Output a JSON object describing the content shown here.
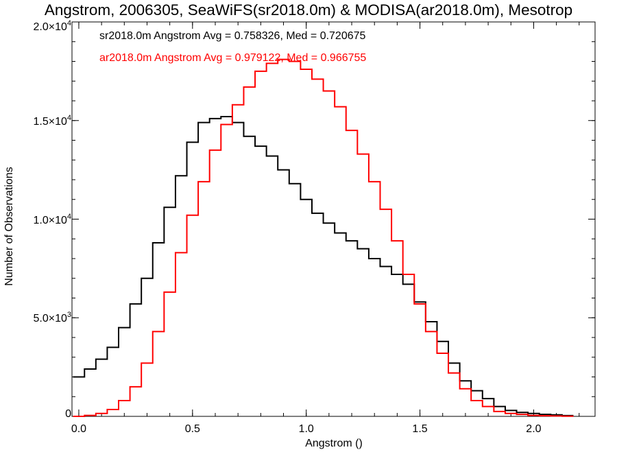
{
  "chart_data": {
    "type": "line",
    "title": "Angstrom, 2006305, SeaWiFS(sr2018.0m) & MODISA(ar2018.0m), Mesotrop",
    "xlabel": "Angstrom ()",
    "ylabel": "Number of Observations",
    "xlim": [
      -0.03,
      2.27
    ],
    "ylim": [
      0,
      20000
    ],
    "xticks": [
      {
        "value": 0.0,
        "label": "0.0"
      },
      {
        "value": 0.5,
        "label": "0.5"
      },
      {
        "value": 1.0,
        "label": "1.0"
      },
      {
        "value": 1.5,
        "label": "1.5"
      },
      {
        "value": 2.0,
        "label": "2.0"
      }
    ],
    "yticks": [
      {
        "value": 0,
        "mant": "0",
        "exp": ""
      },
      {
        "value": 5000,
        "mant": "5.0×10",
        "exp": "3"
      },
      {
        "value": 10000,
        "mant": "1.0×10",
        "exp": "4"
      },
      {
        "value": 15000,
        "mant": "1.5×10",
        "exp": "4"
      },
      {
        "value": 20000,
        "mant": "2.0×10",
        "exp": "4"
      }
    ],
    "grid": false,
    "series": [
      {
        "text": "sr2018.0m Angstrom Avg = 0.758326, Med = 0.720675",
        "color": "#000000",
        "x": [
          0.0,
          0.05,
          0.1,
          0.15,
          0.2,
          0.25,
          0.3,
          0.35,
          0.4,
          0.45,
          0.5,
          0.55,
          0.6,
          0.65,
          0.7,
          0.75,
          0.8,
          0.85,
          0.9,
          0.95,
          1.0,
          1.05,
          1.1,
          1.15,
          1.2,
          1.25,
          1.3,
          1.35,
          1.4,
          1.45,
          1.5,
          1.55,
          1.6,
          1.65,
          1.7,
          1.75,
          1.8,
          1.85,
          1.9,
          1.95,
          2.0,
          2.05,
          2.1,
          2.15
        ],
        "y": [
          2000,
          2400,
          2900,
          3500,
          4500,
          5700,
          7000,
          8800,
          10600,
          12200,
          13900,
          14900,
          15100,
          15200,
          14900,
          14200,
          13700,
          13200,
          12500,
          11800,
          11000,
          10300,
          9800,
          9300,
          8900,
          8500,
          8000,
          7600,
          7200,
          6700,
          5800,
          4800,
          3800,
          2700,
          1800,
          1300,
          900,
          500,
          300,
          200,
          150,
          100,
          80,
          40
        ]
      },
      {
        "text": "ar2018.0m Angstrom Avg = 0.979122, Med = 0.966755",
        "color": "#ff0000",
        "x": [
          0.0,
          0.05,
          0.1,
          0.15,
          0.2,
          0.25,
          0.3,
          0.35,
          0.4,
          0.45,
          0.5,
          0.55,
          0.6,
          0.65,
          0.7,
          0.75,
          0.8,
          0.85,
          0.9,
          0.95,
          1.0,
          1.05,
          1.1,
          1.15,
          1.2,
          1.25,
          1.3,
          1.35,
          1.4,
          1.45,
          1.5,
          1.55,
          1.6,
          1.65,
          1.7,
          1.75,
          1.8,
          1.85,
          1.9,
          1.95,
          2.0,
          2.05,
          2.1,
          2.15
        ],
        "y": [
          0,
          50,
          150,
          350,
          800,
          1500,
          2700,
          4300,
          6300,
          8300,
          10200,
          11900,
          13500,
          14800,
          15800,
          16700,
          17500,
          17900,
          18100,
          18000,
          17600,
          17100,
          16500,
          15700,
          14500,
          13300,
          11900,
          10500,
          8900,
          7200,
          5700,
          4300,
          3200,
          2200,
          1400,
          800,
          500,
          250,
          150,
          100,
          50,
          30,
          20,
          10
        ]
      }
    ]
  }
}
